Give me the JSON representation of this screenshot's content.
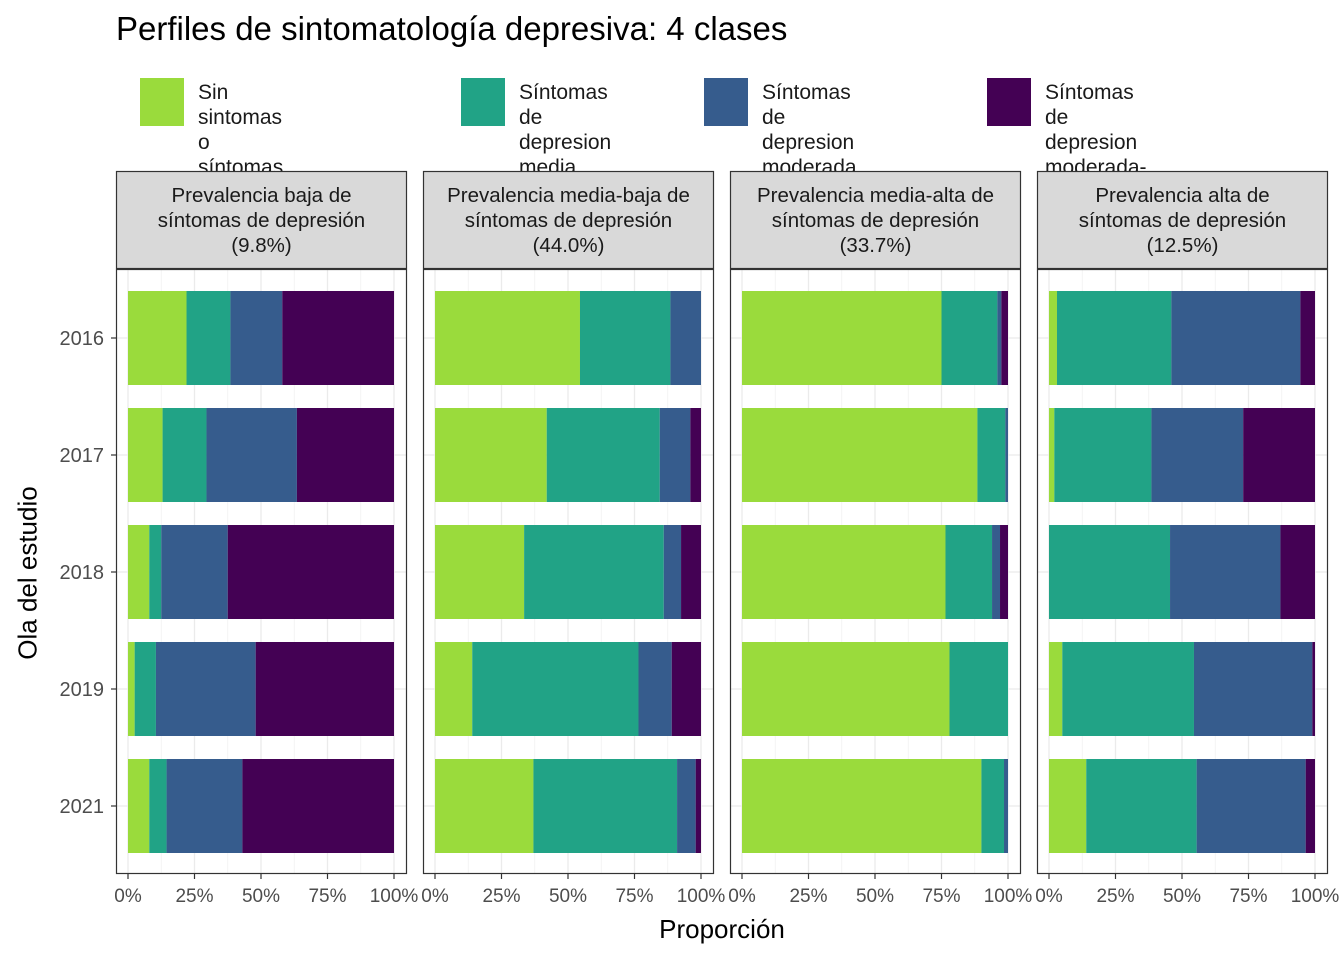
{
  "chart_data": {
    "type": "bar",
    "orientation": "horizontal",
    "stacked": true,
    "title": "Perfiles de sintomatología depresiva: 4 clases",
    "xlabel": "Proporción",
    "ylabel": "Ola del estudio",
    "xlim": [
      0,
      1
    ],
    "x_ticks": [
      "0%",
      "25%",
      "50%",
      "75%",
      "100%"
    ],
    "categories": [
      "2016",
      "2017",
      "2018",
      "2019",
      "2021"
    ],
    "legend_position": "top",
    "legend": [
      {
        "label": "Sin sintomas o síntomas\nde depresión mínima",
        "color": "#9ADB3C"
      },
      {
        "label": "Síntomas de\ndepresion media",
        "color": "#21A386"
      },
      {
        "label": "Síntomas de\ndepresion moderada",
        "color": "#365C8D"
      },
      {
        "label": "Síntomas de depresion\nmoderada-severa o severa",
        "color": "#440154"
      }
    ],
    "panels": [
      {
        "strip": "Prevalencia baja de\nsíntomas de depresión\n(9.8%)",
        "values": {
          "2016": [
            0.22,
            0.165,
            0.195,
            0.42
          ],
          "2017": [
            0.13,
            0.165,
            0.34,
            0.365
          ],
          "2018": [
            0.08,
            0.045,
            0.25,
            0.625
          ],
          "2019": [
            0.025,
            0.08,
            0.375,
            0.52
          ],
          "2021": [
            0.08,
            0.065,
            0.285,
            0.57
          ]
        }
      },
      {
        "strip": "Prevalencia media-baja de\nsíntomas de depresión\n(44.0%)",
        "values": {
          "2016": [
            0.545,
            0.34,
            0.115,
            0.0
          ],
          "2017": [
            0.42,
            0.425,
            0.115,
            0.04
          ],
          "2018": [
            0.335,
            0.525,
            0.065,
            0.075
          ],
          "2019": [
            0.14,
            0.625,
            0.125,
            0.11
          ],
          "2021": [
            0.37,
            0.54,
            0.07,
            0.02
          ]
        }
      },
      {
        "strip": "Prevalencia media-alta de\nsíntomas de depresión\n(33.7%)",
        "values": {
          "2016": [
            0.75,
            0.21,
            0.015,
            0.025
          ],
          "2017": [
            0.885,
            0.105,
            0.01,
            0.0
          ],
          "2018": [
            0.765,
            0.175,
            0.03,
            0.03
          ],
          "2019": [
            0.78,
            0.22,
            0.0,
            0.0
          ],
          "2021": [
            0.9,
            0.085,
            0.015,
            0.0
          ]
        }
      },
      {
        "strip": "Prevalencia alta de\nsíntomas de depresión\n(12.5%)",
        "values": {
          "2016": [
            0.03,
            0.43,
            0.485,
            0.055
          ],
          "2017": [
            0.02,
            0.365,
            0.345,
            0.27
          ],
          "2018": [
            0.0,
            0.455,
            0.415,
            0.13
          ],
          "2019": [
            0.05,
            0.495,
            0.445,
            0.01
          ],
          "2021": [
            0.14,
            0.415,
            0.41,
            0.035
          ]
        }
      }
    ]
  }
}
